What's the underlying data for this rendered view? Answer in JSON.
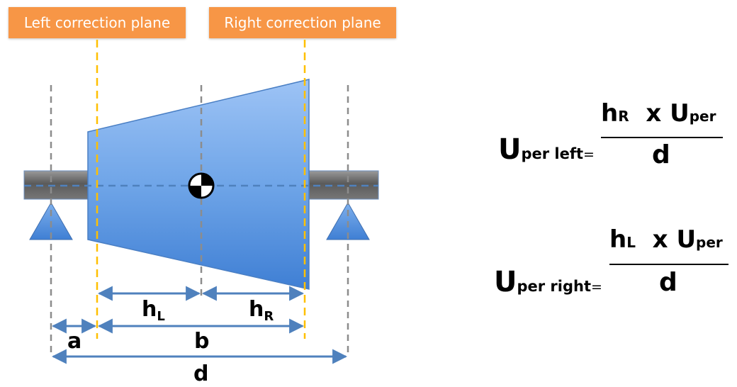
{
  "labels": {
    "left_plane": "Left correction plane",
    "right_plane": "Right correction plane"
  },
  "dimensions": {
    "hL": {
      "main": "h",
      "sub": "L"
    },
    "hR": {
      "main": "h",
      "sub": "R"
    },
    "a": "a",
    "b": "b",
    "d": "d"
  },
  "formulas": {
    "left": {
      "lhs_main": "U",
      "lhs_sub": "per left",
      "equals": "=",
      "num_h": "h",
      "num_h_sub": "R",
      "num_x": "x",
      "num_u": "U",
      "num_u_sub": "per",
      "den": "d"
    },
    "right": {
      "lhs_main": "U",
      "lhs_sub": "per right",
      "equals": "=",
      "num_h": "h",
      "num_h_sub": "L",
      "num_x": "x",
      "num_u": "U",
      "num_u_sub": "per",
      "den": "d"
    }
  },
  "colors": {
    "plane_label_bg": "#F79646",
    "rotor": "#5B9BD5",
    "shaft": "#7F7F7F",
    "correction_plane_line": "#FFC000",
    "support_line": "#8C8C8C",
    "dimension_arrow": "#4F81BD"
  }
}
